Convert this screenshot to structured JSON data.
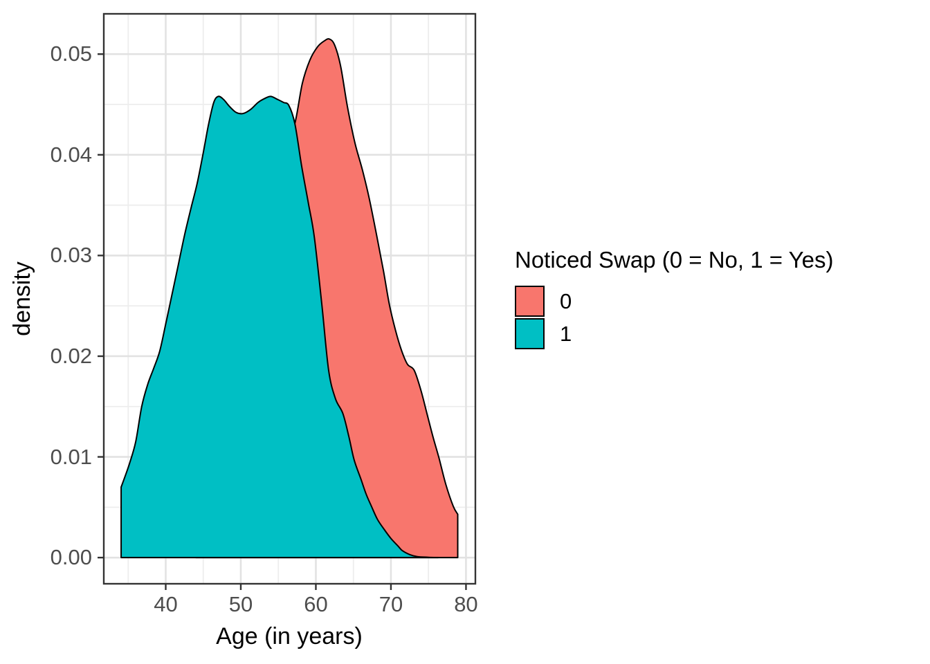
{
  "chart_data": {
    "type": "area",
    "kind": "kernel-density",
    "title": "",
    "xlabel": "Age (in years)",
    "ylabel": "density",
    "xlim": [
      31.75,
      81.25
    ],
    "ylim": [
      -0.0026,
      0.054
    ],
    "grid": "major-and-minor",
    "x_ticks": [
      {
        "value": 40,
        "label": "40"
      },
      {
        "value": 50,
        "label": "50"
      },
      {
        "value": 60,
        "label": "60"
      },
      {
        "value": 70,
        "label": "70"
      },
      {
        "value": 80,
        "label": "80"
      }
    ],
    "y_ticks": [
      {
        "value": 0.0,
        "label": "0.00"
      },
      {
        "value": 0.01,
        "label": "0.01"
      },
      {
        "value": 0.02,
        "label": "0.02"
      },
      {
        "value": 0.03,
        "label": "0.03"
      },
      {
        "value": 0.04,
        "label": "0.04"
      },
      {
        "value": 0.05,
        "label": "0.05"
      }
    ],
    "x_minor": [
      35,
      45,
      55,
      65,
      75
    ],
    "y_minor": [
      0.005,
      0.015,
      0.025,
      0.035,
      0.045
    ],
    "legend": {
      "position": "right",
      "title": "Noticed Swap (0 = No, 1 = Yes)",
      "items": [
        {
          "label": "0",
          "color": "#F8766D"
        },
        {
          "label": "1",
          "color": "#00BFC4"
        }
      ]
    },
    "colors": {
      "panel_background": "#FFFFFF",
      "panel_border": "#333333",
      "grid_major": "#E2E2E2",
      "grid_minor": "#EDEDED",
      "tick_mark": "#333333",
      "tick_label": "#4D4D4D",
      "curve_outline": "#000000"
    },
    "series": [
      {
        "name": "0",
        "fill": "#F8766D",
        "stroke": "#000000",
        "start_at_baseline": true,
        "vertical_drop_at_end": true,
        "points": [
          [
            44.0,
            0.0
          ],
          [
            45.0,
            0.002
          ],
          [
            46.0,
            0.006
          ],
          [
            47.5,
            0.011
          ],
          [
            49.0,
            0.016
          ],
          [
            50.5,
            0.021
          ],
          [
            52.0,
            0.027
          ],
          [
            53.5,
            0.033
          ],
          [
            55.0,
            0.038
          ],
          [
            56.0,
            0.0408
          ],
          [
            57.2,
            0.0431
          ],
          [
            58.2,
            0.0471
          ],
          [
            59.2,
            0.0494
          ],
          [
            60.2,
            0.0507
          ],
          [
            61.1,
            0.0513
          ],
          [
            61.8,
            0.0515
          ],
          [
            62.5,
            0.0509
          ],
          [
            63.3,
            0.0488
          ],
          [
            64.2,
            0.0448
          ],
          [
            65.2,
            0.0412
          ],
          [
            66.2,
            0.0385
          ],
          [
            67.1,
            0.0357
          ],
          [
            68.1,
            0.032
          ],
          [
            69.0,
            0.0285
          ],
          [
            69.8,
            0.0251
          ],
          [
            70.6,
            0.0226
          ],
          [
            71.4,
            0.0206
          ],
          [
            72.2,
            0.0192
          ],
          [
            73.1,
            0.0186
          ],
          [
            74.0,
            0.0166
          ],
          [
            74.8,
            0.0143
          ],
          [
            75.6,
            0.012
          ],
          [
            76.4,
            0.0099
          ],
          [
            77.3,
            0.0073
          ],
          [
            78.3,
            0.0051
          ],
          [
            78.9,
            0.0043
          ]
        ]
      },
      {
        "name": "1",
        "fill": "#00BFC4",
        "stroke": "#000000",
        "vertical_rise_at_start": true,
        "points": [
          [
            34.06,
            0.007
          ],
          [
            34.6,
            0.0081
          ],
          [
            35.2,
            0.0094
          ],
          [
            36.0,
            0.0115
          ],
          [
            36.8,
            0.015
          ],
          [
            37.6,
            0.0172
          ],
          [
            38.4,
            0.0188
          ],
          [
            39.2,
            0.0205
          ],
          [
            40.0,
            0.0232
          ],
          [
            40.8,
            0.026
          ],
          [
            41.6,
            0.0288
          ],
          [
            42.5,
            0.032
          ],
          [
            43.4,
            0.0348
          ],
          [
            44.2,
            0.0372
          ],
          [
            45.0,
            0.0402
          ],
          [
            45.7,
            0.043
          ],
          [
            46.4,
            0.0452
          ],
          [
            47.0,
            0.0458
          ],
          [
            47.7,
            0.0455
          ],
          [
            48.5,
            0.0448
          ],
          [
            49.4,
            0.0442
          ],
          [
            50.3,
            0.0441
          ],
          [
            51.3,
            0.0445
          ],
          [
            52.3,
            0.0452
          ],
          [
            53.2,
            0.0456
          ],
          [
            54.0,
            0.0458
          ],
          [
            54.9,
            0.0455
          ],
          [
            55.7,
            0.0452
          ],
          [
            56.4,
            0.0449
          ],
          [
            57.2,
            0.0431
          ],
          [
            58.1,
            0.0389
          ],
          [
            59.0,
            0.0352
          ],
          [
            59.8,
            0.0318
          ],
          [
            60.8,
            0.0251
          ],
          [
            61.7,
            0.0186
          ],
          [
            62.6,
            0.0158
          ],
          [
            63.6,
            0.0143
          ],
          [
            64.4,
            0.012
          ],
          [
            65.1,
            0.0097
          ],
          [
            66.0,
            0.0078
          ],
          [
            66.7,
            0.0063
          ],
          [
            67.4,
            0.0051
          ],
          [
            68.2,
            0.0038
          ],
          [
            69.1,
            0.0028
          ],
          [
            70.0,
            0.0019
          ],
          [
            71.0,
            0.0011
          ],
          [
            71.5,
            0.0007
          ],
          [
            72.5,
            0.0003
          ],
          [
            73.5,
            0.0001
          ],
          [
            75.0,
            3e-05
          ],
          [
            76.3,
            0.0
          ]
        ]
      }
    ]
  }
}
